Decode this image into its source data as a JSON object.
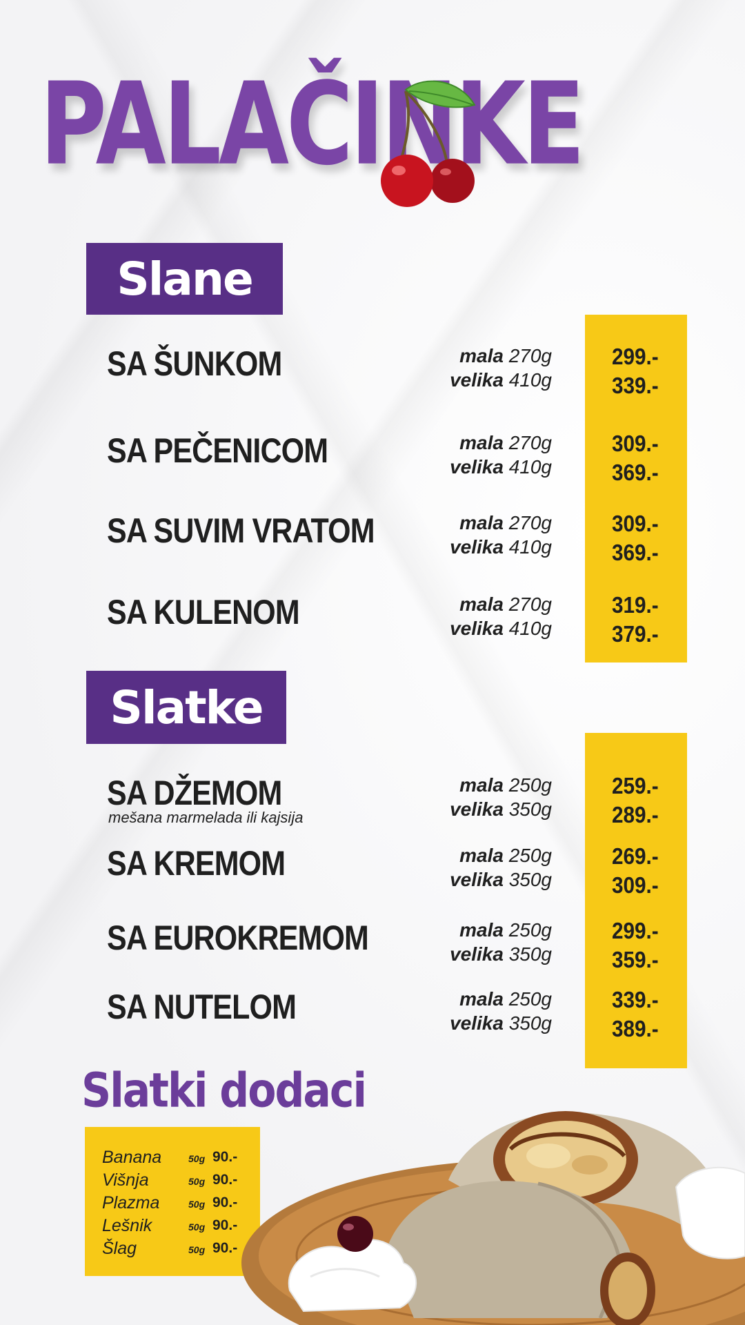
{
  "title": "PALAČINKE",
  "sections": {
    "slane": {
      "heading": "Slane",
      "items": [
        {
          "name": "SA ŠUNKOM",
          "small_label": "mala",
          "small_weight": "270g",
          "large_label": "velika",
          "large_weight": "410g",
          "small_price": "299.-",
          "large_price": "339.-"
        },
        {
          "name": "SA PEČENICOM",
          "small_label": "mala",
          "small_weight": "270g",
          "large_label": "velika",
          "large_weight": "410g",
          "small_price": "309.-",
          "large_price": "369.-"
        },
        {
          "name": "SA SUVIM VRATOM",
          "small_label": "mala",
          "small_weight": "270g",
          "large_label": "velika",
          "large_weight": "410g",
          "small_price": "309.-",
          "large_price": "369.-"
        },
        {
          "name": "SA KULENOM",
          "small_label": "mala",
          "small_weight": "270g",
          "large_label": "velika",
          "large_weight": "410g",
          "small_price": "319.-",
          "large_price": "379.-"
        }
      ]
    },
    "slatke": {
      "heading": "Slatke",
      "items": [
        {
          "name": "SA DŽEMOM",
          "subtitle": "mešana marmelada ili kajsija",
          "small_label": "mala",
          "small_weight": "250g",
          "large_label": "velika",
          "large_weight": "350g",
          "small_price": "259.-",
          "large_price": "289.-"
        },
        {
          "name": "SA KREMOM",
          "small_label": "mala",
          "small_weight": "250g",
          "large_label": "velika",
          "large_weight": "350g",
          "small_price": "269.-",
          "large_price": "309.-"
        },
        {
          "name": "SA EUROKREMOM",
          "small_label": "mala",
          "small_weight": "250g",
          "large_label": "velika",
          "large_weight": "350g",
          "small_price": "299.-",
          "large_price": "359.-"
        },
        {
          "name": "SA NUTELOM",
          "small_label": "mala",
          "small_weight": "250g",
          "large_label": "velika",
          "large_weight": "350g",
          "small_price": "339.-",
          "large_price": "389.-"
        }
      ]
    }
  },
  "addons": {
    "heading": "Slatki dodaci",
    "items": [
      {
        "name": "Banana",
        "weight": "50g",
        "price": "90.-"
      },
      {
        "name": "Višnja",
        "weight": "50g",
        "price": "90.-"
      },
      {
        "name": "Plazma",
        "weight": "50g",
        "price": "90.-"
      },
      {
        "name": "Lešnik",
        "weight": "50g",
        "price": "90.-"
      },
      {
        "name": "Šlag",
        "weight": "50g",
        "price": "90.-"
      }
    ]
  },
  "colors": {
    "brand_purple": "#7a45a6",
    "banner_purple": "#582f86",
    "price_yellow": "#f7c917",
    "text_dark": "#1f1f1f"
  },
  "icons": [
    "cherry-icon",
    "crepe-plate-image"
  ]
}
